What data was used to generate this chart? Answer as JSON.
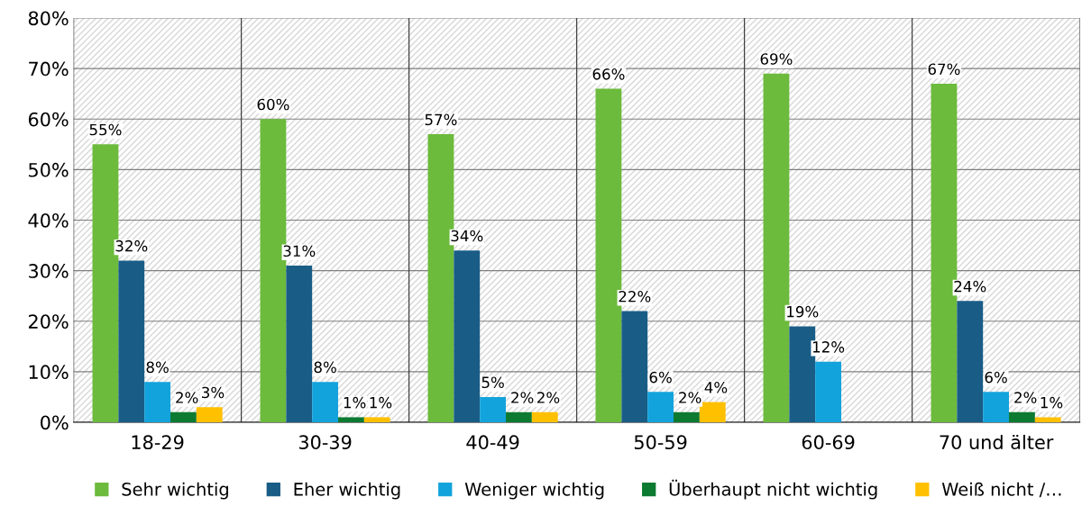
{
  "chart_data": {
    "type": "bar",
    "categories": [
      "18-29",
      "30-39",
      "40-49",
      "50-59",
      "60-69",
      "70 und älter"
    ],
    "series": [
      {
        "name": "Sehr wichtig",
        "color": "#6cbb3c",
        "values": [
          55,
          60,
          57,
          66,
          69,
          67
        ]
      },
      {
        "name": "Eher wichtig",
        "color": "#195d87",
        "values": [
          32,
          31,
          34,
          22,
          19,
          24
        ]
      },
      {
        "name": "Weniger wichtig",
        "color": "#13a3dc",
        "values": [
          8,
          8,
          5,
          6,
          12,
          6
        ]
      },
      {
        "name": "Überhaupt nicht wichtig",
        "color": "#0d7a31",
        "values": [
          2,
          1,
          2,
          2,
          null,
          2
        ]
      },
      {
        "name": "Weiß nicht /…",
        "color": "#ffc000",
        "values": [
          3,
          1,
          2,
          4,
          null,
          1
        ]
      }
    ],
    "ylim": [
      0,
      80
    ],
    "yticks": [
      {
        "value": 0,
        "label": "0%"
      },
      {
        "value": 10,
        "label": "10%"
      },
      {
        "value": 20,
        "label": "20%"
      },
      {
        "value": 30,
        "label": "30%"
      },
      {
        "value": 40,
        "label": "40%"
      },
      {
        "value": 50,
        "label": "50%"
      },
      {
        "value": 60,
        "label": "60%"
      },
      {
        "value": 70,
        "label": "70%"
      },
      {
        "value": 80,
        "label": "80%"
      }
    ],
    "value_labels": [
      [
        "55%",
        "60%",
        "57%",
        "66%",
        "69%",
        "67%"
      ],
      [
        "32%",
        "31%",
        "34%",
        "22%",
        "19%",
        "24%"
      ],
      [
        "8%",
        "8%",
        "5%",
        "6%",
        "12%",
        "6%"
      ],
      [
        "2%",
        "1%",
        "2%",
        "2%",
        null,
        "2%"
      ],
      [
        "3%",
        "1%",
        "2%",
        "4%",
        null,
        "1%"
      ]
    ],
    "grid": true,
    "legend": "bottom"
  }
}
